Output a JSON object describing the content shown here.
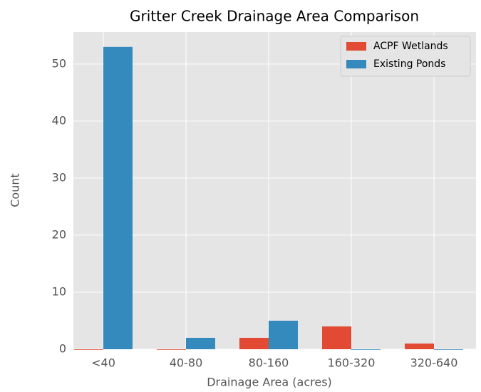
{
  "chart_data": {
    "type": "bar",
    "title": "Gritter Creek Drainage Area Comparison",
    "x_label": "Drainage Area (acres)",
    "y_label": "Count",
    "categories": [
      "<40",
      "40-80",
      "80-160",
      "160-320",
      "320-640"
    ],
    "series": [
      {
        "name": "ACPF Wetlands",
        "color": "#E24A33",
        "values": [
          0,
          0,
          2,
          4,
          1
        ]
      },
      {
        "name": "Existing Ponds",
        "color": "#348ABD",
        "values": [
          53,
          2,
          5,
          0,
          0
        ]
      }
    ],
    "ylim": [
      0,
      55.6
    ],
    "yticks": [
      0,
      10,
      20,
      30,
      40,
      50
    ],
    "grid": true,
    "legend": "upper-right"
  }
}
